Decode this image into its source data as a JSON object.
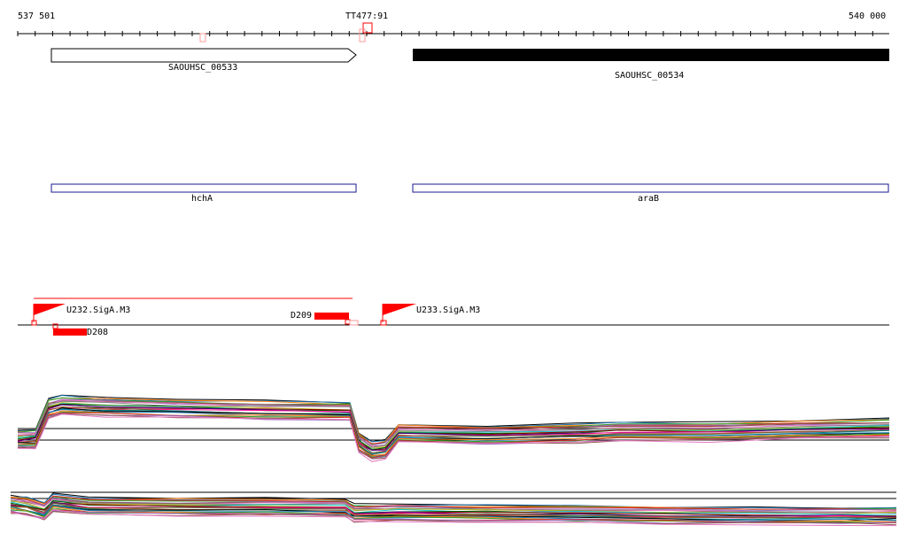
{
  "ruler": {
    "start_label": "537 501",
    "end_label": "540 000",
    "marker_label": "TT477:91"
  },
  "genes": {
    "locus1": "SAOUHSC_00533",
    "locus2": "SAOUHSC_00534",
    "name1": "hchA",
    "name2": "araB"
  },
  "features": {
    "promoter1": "U232.SigA.M3",
    "promoter2": "U233.SigA.M3",
    "segment_d208": "D208",
    "segment_d209": "D209"
  },
  "colors": {
    "forward_gene": "#ffffff",
    "reverse_gene": "#000000",
    "gene_name_box": "#1a1a8c",
    "feature": "#ff0000"
  }
}
